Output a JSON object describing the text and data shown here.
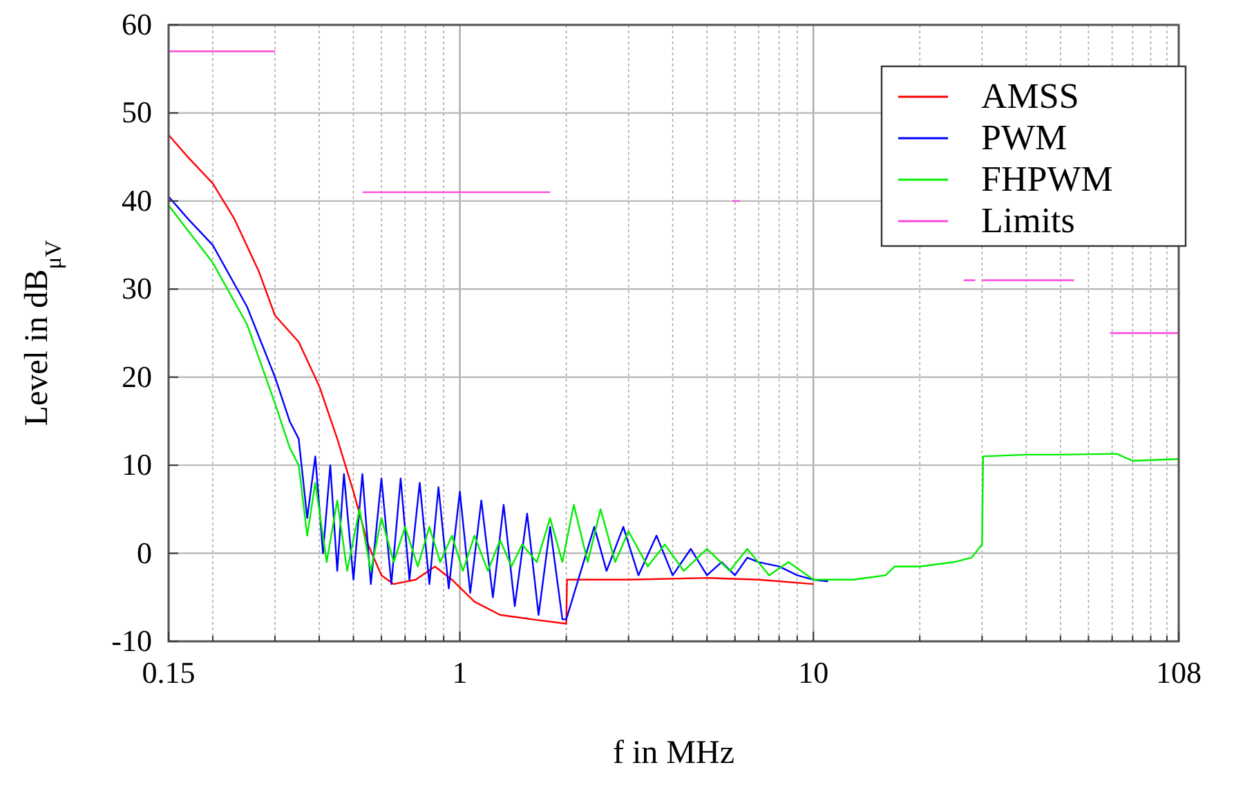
{
  "chart_data": {
    "type": "line",
    "xlabel": "f in MHz",
    "ylabel": "Level in dB$_{μV}$",
    "log": "x",
    "xlim": [
      0.15,
      108
    ],
    "ylim": [
      -10,
      60
    ],
    "xticks": [
      0.15,
      {
        "value": 0.2,
        "label": null
      },
      {
        "value": 0.3,
        "label": null
      },
      {
        "value": 0.4,
        "label": null
      },
      {
        "value": 0.5,
        "label": null
      },
      {
        "value": 0.6,
        "label": null
      },
      {
        "value": 0.7,
        "label": null
      },
      {
        "value": 0.8,
        "label": null
      },
      {
        "value": 0.9,
        "label": null
      },
      1,
      {
        "value": 2,
        "label": null
      },
      {
        "value": 3,
        "label": null
      },
      {
        "value": 4,
        "label": null
      },
      {
        "value": 5,
        "label": null
      },
      {
        "value": 6,
        "label": null
      },
      {
        "value": 7,
        "label": null
      },
      {
        "value": 8,
        "label": null
      },
      {
        "value": 9,
        "label": null
      },
      10,
      {
        "value": 20,
        "label": null
      },
      {
        "value": 30,
        "label": null
      },
      {
        "value": 40,
        "label": null
      },
      {
        "value": 50,
        "label": null
      },
      {
        "value": 60,
        "label": null
      },
      {
        "value": 70,
        "label": null
      },
      {
        "value": 80,
        "label": null
      },
      {
        "value": 90,
        "label": null
      },
      {
        "value": 100,
        "label": null
      },
      108
    ],
    "yticks": [
      -10,
      0,
      10,
      20,
      30,
      40,
      50,
      60
    ],
    "grid": true,
    "legend": "top right",
    "line_style": "solid",
    "marker": "none",
    "series": [
      {
        "name": "AMSS",
        "color": "#ff0000",
        "x": [
          0.15,
          0.17,
          0.2,
          0.23,
          0.27,
          0.3,
          0.35,
          0.4,
          0.45,
          0.5,
          0.55,
          0.6,
          0.65,
          0.75,
          0.85,
          0.95,
          1.1,
          1.3,
          1.6,
          2.0,
          2.01,
          3,
          5,
          7,
          10
        ],
        "values": [
          47.5,
          45,
          42,
          38,
          32,
          27,
          24,
          19,
          13,
          7,
          1,
          -2.5,
          -3.5,
          -3,
          -1.5,
          -3,
          -5.5,
          -7,
          -7.5,
          -8,
          -3,
          -3,
          -2.8,
          -3,
          -3.5
        ]
      },
      {
        "name": "PWM",
        "color": "#0000ff",
        "x": [
          0.15,
          0.17,
          0.2,
          0.25,
          0.3,
          0.33,
          0.35,
          0.37,
          0.39,
          0.41,
          0.43,
          0.45,
          0.47,
          0.5,
          0.53,
          0.56,
          0.6,
          0.64,
          0.68,
          0.72,
          0.77,
          0.82,
          0.87,
          0.93,
          1.0,
          1.07,
          1.15,
          1.24,
          1.33,
          1.43,
          1.55,
          1.67,
          1.8,
          1.95,
          2.0,
          2.2,
          2.4,
          2.6,
          2.9,
          3.2,
          3.6,
          4,
          4.5,
          5,
          5.5,
          6,
          6.5,
          7,
          8,
          9,
          10,
          11
        ],
        "values": [
          40.5,
          38,
          35,
          28,
          20,
          15,
          13,
          4,
          11,
          0,
          10,
          -2,
          9,
          -3,
          9,
          -3.5,
          8.5,
          -3.5,
          8.5,
          -3,
          8,
          -3.5,
          7.5,
          -4,
          7,
          -4.5,
          6,
          -5,
          5.5,
          -6,
          4.5,
          -7,
          3,
          -7.5,
          -7.5,
          -2,
          3,
          -2,
          3,
          -2.5,
          2,
          -2.5,
          0.5,
          -2.5,
          -1,
          -2.5,
          -0.5,
          -1,
          -1.5,
          -2.5,
          -3,
          -3.2
        ]
      },
      {
        "name": "FHPWM",
        "color": "#00ee00",
        "x": [
          0.15,
          0.2,
          0.25,
          0.3,
          0.33,
          0.35,
          0.37,
          0.39,
          0.42,
          0.45,
          0.48,
          0.52,
          0.56,
          0.6,
          0.65,
          0.7,
          0.76,
          0.82,
          0.88,
          0.95,
          1.02,
          1.1,
          1.2,
          1.3,
          1.4,
          1.5,
          1.65,
          1.8,
          1.95,
          2.1,
          2.3,
          2.5,
          2.75,
          3,
          3.4,
          3.8,
          4.3,
          5,
          5.8,
          6.5,
          7.5,
          8.5,
          10,
          13,
          16,
          17,
          20,
          25,
          28,
          30,
          30.2,
          40,
          50,
          72,
          80,
          108
        ],
        "values": [
          39.5,
          33,
          26,
          17,
          12,
          10,
          2,
          8,
          -1,
          6,
          -2,
          5,
          -2,
          4,
          -1,
          3,
          -1.5,
          3,
          -1,
          2,
          -2,
          2,
          -2,
          1.5,
          -1.5,
          1,
          -1,
          4,
          -1,
          5.5,
          -1,
          5,
          -1,
          2.5,
          -1.5,
          1,
          -2,
          0.5,
          -2,
          0.5,
          -2.5,
          -1,
          -3,
          -3,
          -2.5,
          -1.5,
          -1.5,
          -1,
          -0.5,
          1,
          11,
          11.2,
          11.2,
          11.3,
          10.5,
          10.7
        ]
      },
      {
        "name": "Limits",
        "color": "#ff44dd",
        "x": [
          0.15,
          0.3,
          0.31,
          0.53,
          1.8,
          1.81,
          5.9,
          6.2,
          6.3,
          26.6,
          28.7,
          29,
          30,
          54.6,
          55,
          69,
          108
        ],
        "values": [
          57,
          57,
          null,
          41,
          41,
          null,
          40,
          40,
          null,
          31,
          31,
          null,
          31,
          31,
          null,
          25,
          25
        ]
      }
    ]
  }
}
